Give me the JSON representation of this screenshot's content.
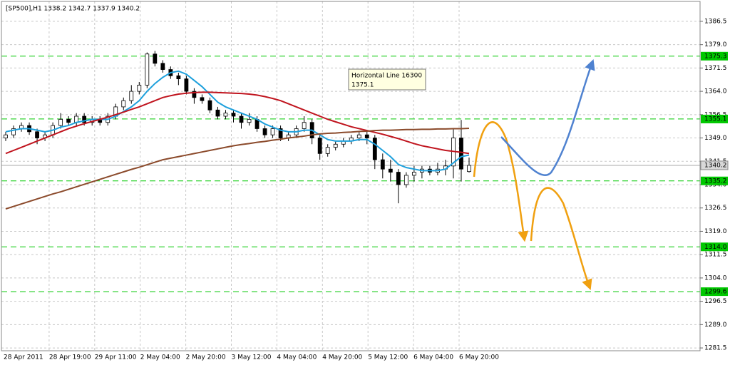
{
  "chart_data": {
    "type": "candlestick",
    "title": "[SP500],H1  1338.2 1342.7 1337.9 1340.2",
    "x_labels": [
      "28 Apr 2011",
      "28 Apr 19:00",
      "29 Apr 11:00",
      "2 May 04:00",
      "2 May 20:00",
      "3 May 12:00",
      "4 May 04:00",
      "4 May 20:00",
      "5 May 12:00",
      "6 May 04:00",
      "6 May 20:00"
    ],
    "open": [
      1349,
      1350,
      1352,
      1353,
      1351,
      1349,
      1350,
      1353,
      1355,
      1354,
      1356,
      1354,
      1355,
      1354,
      1356,
      1359,
      1361,
      1364,
      1366,
      1376,
      1373,
      1371,
      1369,
      1368,
      1364,
      1362,
      1361,
      1358,
      1356,
      1357,
      1356,
      1354,
      1355,
      1352,
      1350,
      1352,
      1349,
      1350,
      1352,
      1354,
      1349,
      1344,
      1346,
      1347,
      1348,
      1349,
      1350,
      1349,
      1342,
      1339,
      1338,
      1334,
      1337,
      1338,
      1339,
      1338,
      1339,
      1340,
      1349,
      1338.2
    ],
    "high": [
      1351,
      1353,
      1354,
      1354,
      1352,
      1351,
      1354,
      1357,
      1356,
      1357,
      1357,
      1356,
      1356,
      1357,
      1360,
      1362,
      1366,
      1367,
      1376.5,
      1377,
      1374,
      1372,
      1370,
      1369,
      1365,
      1363,
      1362,
      1359,
      1358,
      1358,
      1357,
      1357,
      1356,
      1353,
      1353,
      1353,
      1351,
      1353,
      1356,
      1355,
      1350,
      1347,
      1348,
      1349,
      1350,
      1351,
      1351,
      1350,
      1344,
      1342,
      1339,
      1338,
      1340,
      1340,
      1340,
      1341,
      1342,
      1352,
      1354.8,
      1342.7
    ],
    "low": [
      1348,
      1349,
      1351,
      1350,
      1347,
      1348,
      1349,
      1352,
      1353,
      1353,
      1353,
      1353,
      1353,
      1353,
      1355,
      1358,
      1360,
      1363,
      1365,
      1372,
      1370,
      1368,
      1366,
      1363,
      1360,
      1360,
      1357,
      1355,
      1355,
      1354,
      1352,
      1353,
      1351,
      1349,
      1349,
      1348,
      1348,
      1349,
      1351,
      1347,
      1342,
      1343,
      1345,
      1346,
      1347,
      1348,
      1347,
      1339,
      1336,
      1335,
      1328,
      1333,
      1335,
      1336,
      1337,
      1337,
      1337,
      1336,
      1335,
      1337.9
    ],
    "close": [
      1350,
      1352,
      1353,
      1351,
      1349,
      1350,
      1353,
      1355,
      1354,
      1356,
      1354,
      1355,
      1354,
      1356,
      1359,
      1361,
      1364,
      1366,
      1376,
      1373,
      1371,
      1369,
      1368,
      1364,
      1362,
      1361,
      1358,
      1356,
      1357,
      1356,
      1354,
      1355,
      1352,
      1350,
      1352,
      1349,
      1350,
      1352,
      1354,
      1349,
      1344,
      1346,
      1347,
      1348,
      1349,
      1350,
      1349,
      1342,
      1339,
      1338,
      1334,
      1337,
      1338,
      1339,
      1338,
      1339,
      1340,
      1349,
      1339,
      1340.2
    ],
    "moving_averages": [
      {
        "color": "#1ea0dc",
        "values": [
          1351,
          1351.5,
          1352,
          1352,
          1351.5,
          1351,
          1351.5,
          1352.5,
          1353,
          1354,
          1354.5,
          1355,
          1355,
          1355,
          1356,
          1357.5,
          1359,
          1361,
          1364,
          1366.5,
          1368.5,
          1370,
          1370.5,
          1369.5,
          1367.5,
          1365.5,
          1363,
          1360.5,
          1359,
          1358,
          1357,
          1356,
          1355,
          1353.5,
          1352.5,
          1351.5,
          1351,
          1351,
          1351.5,
          1351.5,
          1350,
          1348.5,
          1348,
          1348,
          1348,
          1348.5,
          1348.5,
          1347,
          1345,
          1343,
          1340.5,
          1339.5,
          1339,
          1338.5,
          1338.5,
          1338.5,
          1339,
          1341,
          1343,
          1343.5
        ]
      },
      {
        "color": "#c0141e",
        "values": [
          1344,
          1345,
          1346,
          1347,
          1348,
          1349,
          1350,
          1351,
          1352,
          1352.8,
          1353.6,
          1354.3,
          1355,
          1355.7,
          1356.5,
          1357.3,
          1358.2,
          1359,
          1360,
          1361,
          1362,
          1362.6,
          1363.1,
          1363.4,
          1363.6,
          1363.7,
          1363.7,
          1363.6,
          1363.5,
          1363.4,
          1363.3,
          1363.1,
          1362.8,
          1362.3,
          1361.7,
          1361,
          1360,
          1359,
          1358,
          1357,
          1356,
          1355,
          1354.2,
          1353.4,
          1352.6,
          1352,
          1351.4,
          1350.8,
          1350.2,
          1349.5,
          1348.8,
          1348,
          1347.2,
          1346.5,
          1346,
          1345.5,
          1345,
          1344.7,
          1344.4,
          1344
        ]
      },
      {
        "color": "#8b4a2b",
        "values": [
          1326.2,
          1327,
          1327.8,
          1328.6,
          1329.4,
          1330.2,
          1331,
          1331.7,
          1332.5,
          1333.3,
          1334.1,
          1334.9,
          1335.7,
          1336.5,
          1337.3,
          1338.1,
          1338.9,
          1339.6,
          1340.4,
          1341.2,
          1342,
          1342.5,
          1343,
          1343.5,
          1344,
          1344.5,
          1345,
          1345.5,
          1346,
          1346.5,
          1346.9,
          1347.2,
          1347.6,
          1347.9,
          1348.3,
          1348.6,
          1349,
          1349.3,
          1349.6,
          1350,
          1350.3,
          1350.5,
          1350.6,
          1350.8,
          1350.9,
          1351.1,
          1351.2,
          1351.4,
          1351.5,
          1351.5,
          1351.6,
          1351.7,
          1351.7,
          1351.8,
          1351.8,
          1351.9,
          1351.9,
          1352,
          1352,
          1352.1
        ]
      }
    ],
    "ylim": [
      1280.6,
      1392.9
    ],
    "yticks": [
      1386.5,
      {
        "value": 1379,
        "label": "1379.0"
      },
      1371.5,
      {
        "value": 1364,
        "label": "1364.0"
      },
      1356.5,
      {
        "value": 1349,
        "label": "1349.0"
      },
      1341.5,
      {
        "value": 1334,
        "label": "1334.0"
      },
      1326.5,
      {
        "value": 1319,
        "label": "1319.0"
      },
      1311.5,
      {
        "value": 1304,
        "label": "1304.0"
      },
      1296.5,
      {
        "value": 1289,
        "label": "1289.0"
      },
      1281.5
    ],
    "levels": [
      1375.3,
      1355.1,
      1335.2,
      1314,
      1299.6
    ],
    "level_labels": [
      "1375.3",
      "1355.1",
      "1335.2",
      "1314.0",
      "1299.6"
    ],
    "level_color": "#00c800",
    "last_price": 1340.2,
    "annotation": {
      "title": "Horizontal Line 16300",
      "value": 1375.1
    },
    "grid": true
  }
}
